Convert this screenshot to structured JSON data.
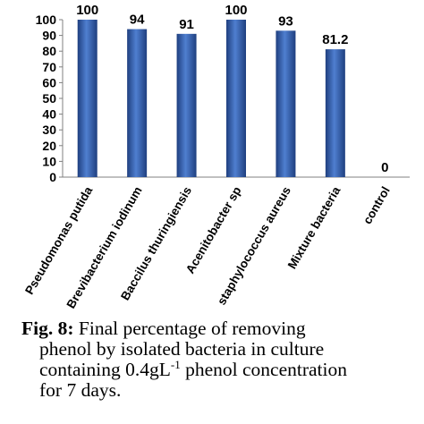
{
  "chart_data": {
    "type": "bar",
    "title": "",
    "xlabel": "",
    "ylabel": "",
    "ylim": [
      0,
      100
    ],
    "yticks": [
      "0",
      "10",
      "20",
      "30",
      "40",
      "50",
      "60",
      "70",
      "80",
      "90",
      "100"
    ],
    "grid": false,
    "legend": "none",
    "categories": [
      "Pseudomonas putida",
      "Brevibacterium iodinum",
      "Baccilus thuringiensis",
      "Acenitobacter sp",
      "staphylococcus aureus",
      "Mixture bacteria",
      "control"
    ],
    "values": [
      100,
      94,
      91,
      100,
      93,
      81.2,
      0
    ],
    "data_labels": [
      "100",
      "94",
      "91",
      "100",
      "93",
      "81.2",
      "0"
    ],
    "bar_color": "#2f5aa8",
    "bar_highlight": "#4f7fd0",
    "bar_shadow": "#1f3f7f"
  },
  "caption": {
    "label": "Fig. 8:",
    "text_1": " Final percentage of removing",
    "text_2": "phenol by isolated bacteria in culture",
    "text_3a": "containing 0.4gL",
    "text_3sup": "-1",
    "text_3b": " phenol concentration",
    "text_4": "for 7 days."
  }
}
